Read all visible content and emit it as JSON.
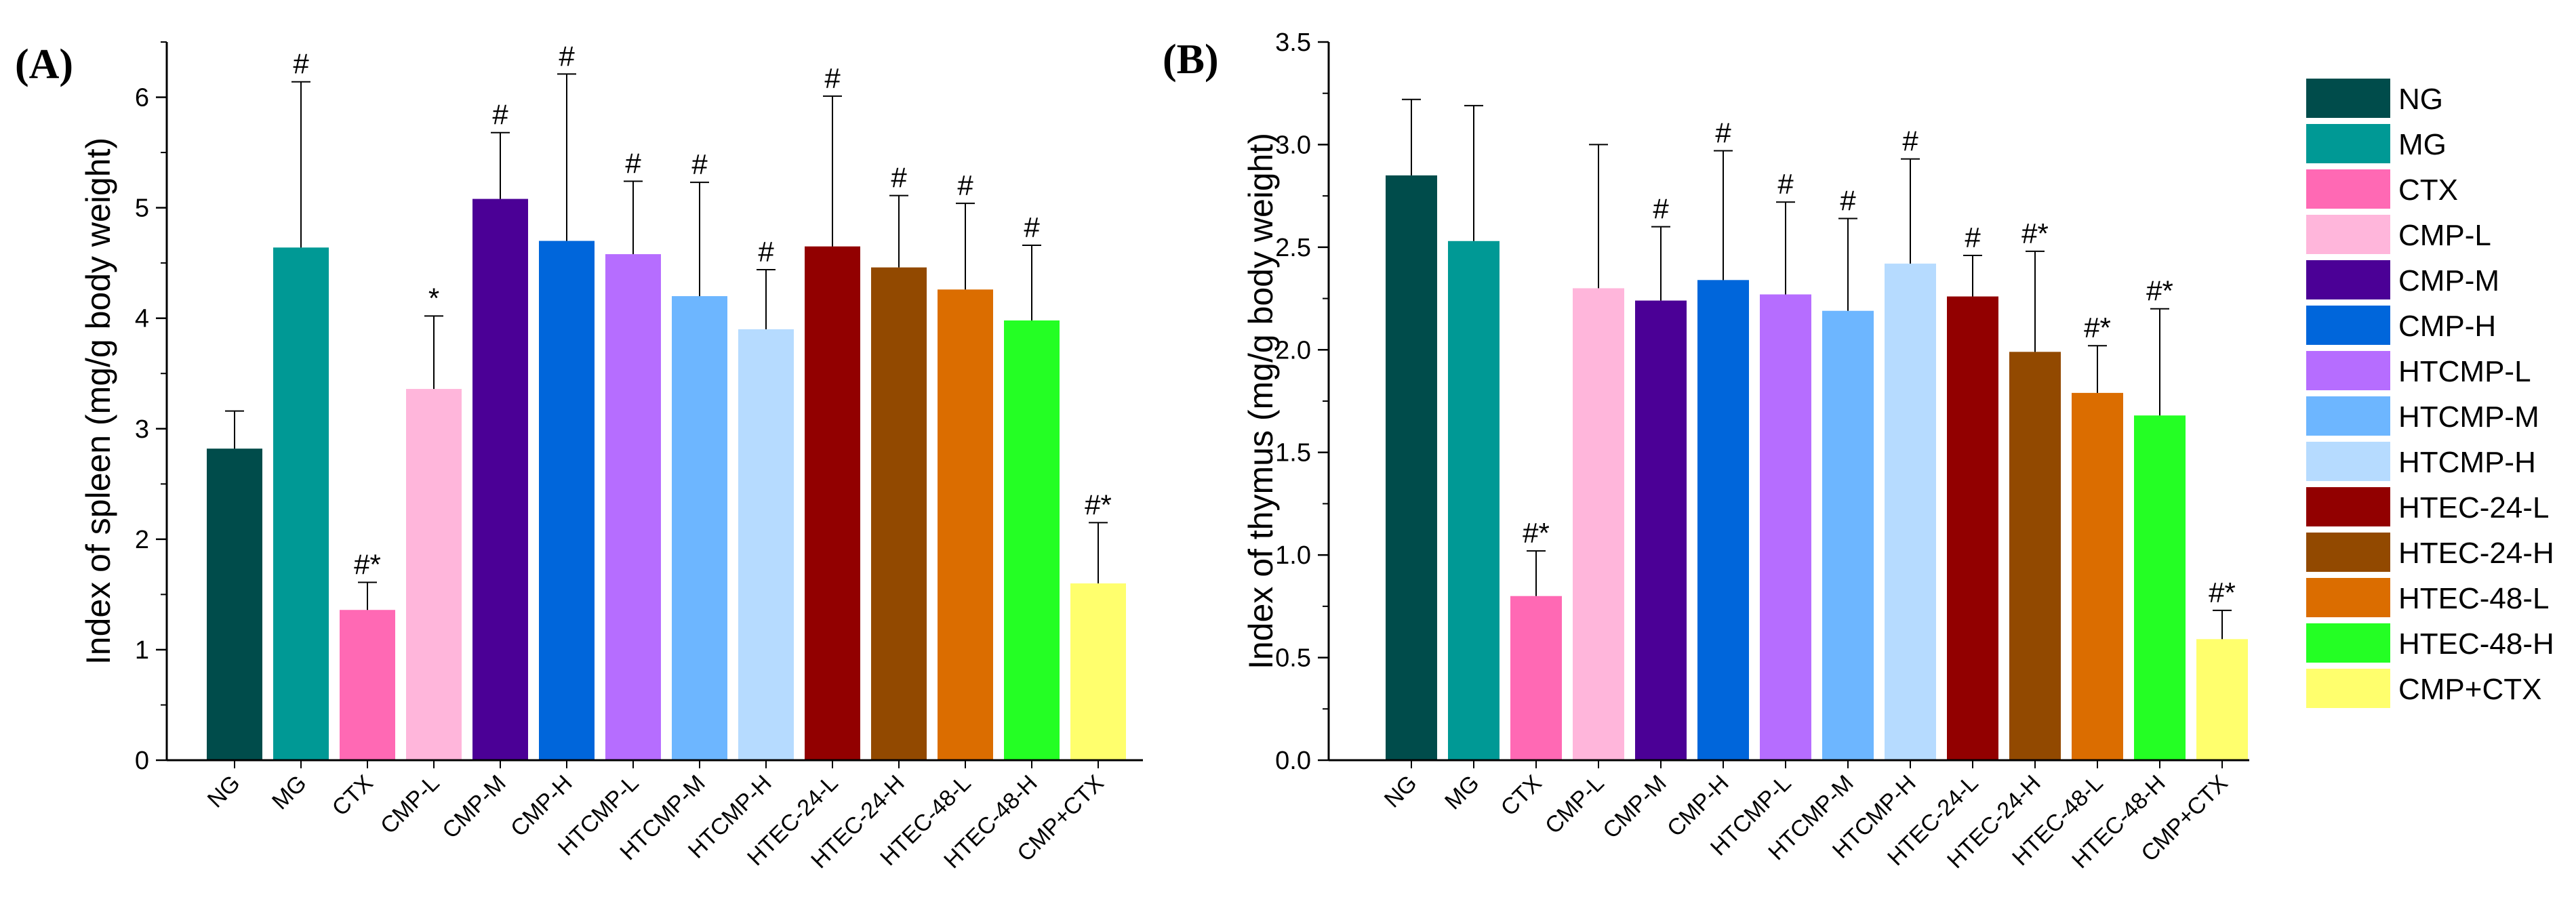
{
  "chart_data": [
    {
      "type": "bar",
      "panel_label": "(A)",
      "ylabel": "Index of spleen (mg/g body weight)",
      "ylim": [
        0,
        6.5
      ],
      "yticks": [
        0,
        1,
        2,
        3,
        4,
        5,
        6
      ],
      "ytick_labels": [
        "0",
        "1",
        "2",
        "3",
        "4",
        "5",
        "6"
      ],
      "categories": [
        "NG",
        "MG",
        "CTX",
        "CMP-L",
        "CMP-M",
        "CMP-H",
        "HTCMP-L",
        "HTCMP-M",
        "HTCMP-H",
        "HTEC-24-L",
        "HTEC-24-H",
        "HTEC-48-L",
        "HTEC-48-H",
        "CMP+CTX"
      ],
      "values": [
        2.82,
        4.64,
        1.36,
        3.36,
        5.08,
        4.7,
        4.58,
        4.2,
        3.9,
        4.65,
        4.46,
        4.26,
        3.98,
        1.6
      ],
      "errors": [
        0.34,
        1.5,
        0.25,
        0.66,
        0.6,
        1.51,
        0.66,
        1.03,
        0.54,
        1.36,
        0.65,
        0.78,
        0.68,
        0.55
      ],
      "annotations": [
        "",
        "#",
        "#*",
        "*",
        "#",
        "#",
        "#",
        "#",
        "#",
        "#",
        "#",
        "#",
        "#",
        "#*"
      ]
    },
    {
      "type": "bar",
      "panel_label": "(B)",
      "ylabel": "Index of thymus (mg/g body weight)",
      "ylim": [
        0,
        3.5
      ],
      "yticks": [
        0,
        0.5,
        1,
        1.5,
        2,
        2.5,
        3,
        3.5
      ],
      "ytick_labels": [
        "0.0",
        "0.5",
        "1.0",
        "1.5",
        "2.0",
        "2.5",
        "3.0",
        "3.5"
      ],
      "categories": [
        "NG",
        "MG",
        "CTX",
        "CMP-L",
        "CMP-M",
        "CMP-H",
        "HTCMP-L",
        "HTCMP-M",
        "HTCMP-H",
        "HTEC-24-L",
        "HTEC-24-H",
        "HTEC-48-L",
        "HTEC-48-H",
        "CMP+CTX"
      ],
      "values": [
        2.85,
        2.53,
        0.8,
        2.3,
        2.24,
        2.34,
        2.27,
        2.19,
        2.42,
        2.26,
        1.99,
        1.79,
        1.68,
        0.59
      ],
      "errors": [
        0.37,
        0.66,
        0.22,
        0.7,
        0.36,
        0.63,
        0.45,
        0.45,
        0.51,
        0.2,
        0.49,
        0.23,
        0.52,
        0.14
      ],
      "annotations": [
        "",
        "",
        "#*",
        "",
        "#",
        "#",
        "#",
        "#",
        "#",
        "#",
        "#*",
        "#*",
        "#*",
        "#*"
      ]
    }
  ],
  "legend": {
    "entries": [
      "NG",
      "MG",
      "CTX",
      "CMP-L",
      "CMP-M",
      "CMP-H",
      "HTCMP-L",
      "HTCMP-M",
      "HTCMP-H",
      "HTEC-24-L",
      "HTEC-24-H",
      "HTEC-48-L",
      "HTEC-48-H",
      "CMP+CTX"
    ],
    "colors": [
      "#004C4B",
      "#009995",
      "#FF69B4",
      "#FFB6DB",
      "#4B0096",
      "#0066DB",
      "#B66DFF",
      "#6DB6FF",
      "#B6DBFF",
      "#920000",
      "#924900",
      "#DB6D00",
      "#24FF24",
      "#FFFF6D"
    ],
    "placement": "right"
  }
}
